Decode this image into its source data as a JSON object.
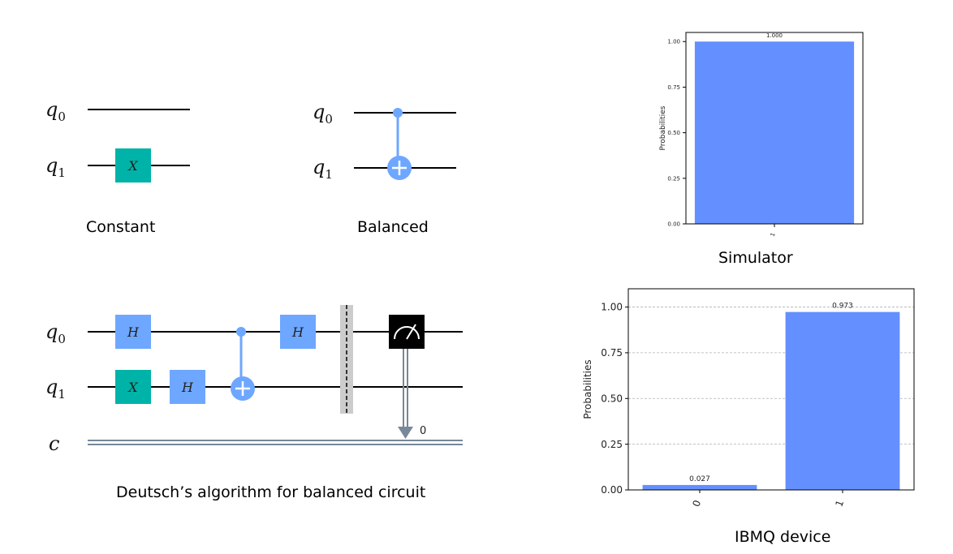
{
  "captions": {
    "constant": "Constant",
    "balanced": "Balanced",
    "deutsch": "Deutsch’s algorithm for balanced circuit",
    "simulator": "Simulator",
    "ibmq": "IBMQ device"
  },
  "circuits": {
    "qubit_letter": "q",
    "q0_index": "0",
    "q1_index": "1",
    "classical_label": "c",
    "x_gate": "X",
    "h_gate": "H",
    "classical_bit_index": "0"
  },
  "colors": {
    "x_gate": "#00b3a8",
    "h_gate": "#6ea7ff",
    "control": "#6ea7ff",
    "bar": "#648fff",
    "measure": "#000000",
    "wire": "#000000",
    "classical": "#778899",
    "barrier": "#cccccc"
  },
  "chart_data": [
    {
      "type": "bar",
      "categories": [
        "1"
      ],
      "values": [
        1.0
      ],
      "value_labels": [
        "1.000"
      ],
      "ylabel": "Probabilities",
      "ylim": [
        0,
        1.05
      ],
      "yticks": [
        "0.00",
        "0.25",
        "0.50",
        "0.75",
        "1.00"
      ],
      "grid": false
    },
    {
      "type": "bar",
      "categories": [
        "0",
        "1"
      ],
      "values": [
        0.027,
        0.973
      ],
      "value_labels": [
        "0.027",
        "0.973"
      ],
      "ylabel": "Probabilities",
      "ylim": [
        0,
        1.1
      ],
      "yticks": [
        "0.00",
        "0.25",
        "0.50",
        "0.75",
        "1.00"
      ],
      "grid": true
    }
  ]
}
